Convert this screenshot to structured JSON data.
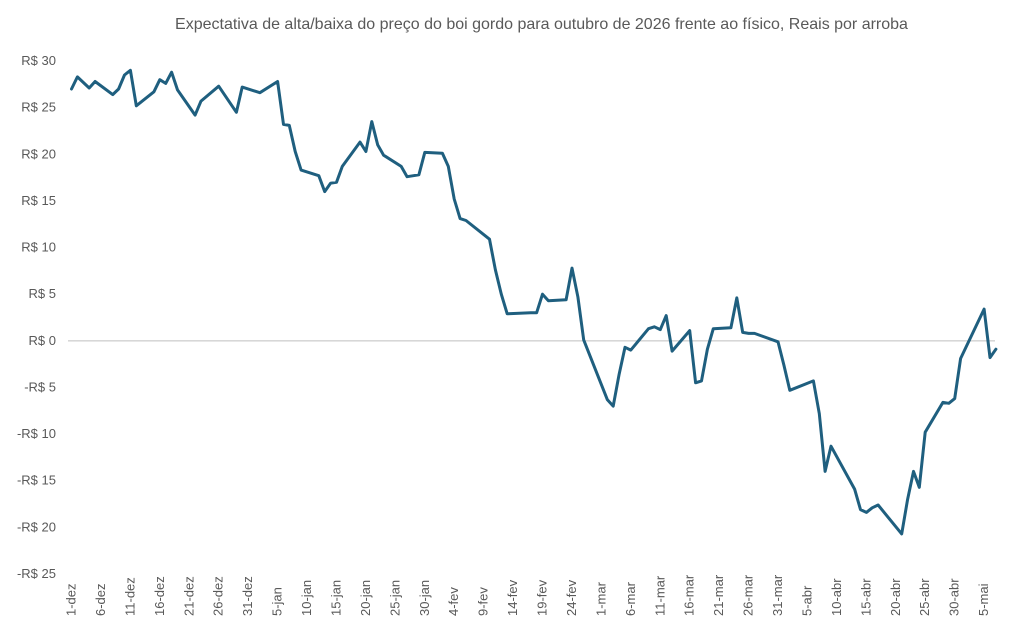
{
  "chart_data": {
    "type": "line",
    "title": "Expectativa de alta/baixa do preço do boi gordo para outubro de 2026 frente ao físico, Reais por arroba",
    "xlabel": "",
    "ylabel": "",
    "ylim": [
      -25,
      30
    ],
    "grid": false,
    "y_tick_labels": [
      "R$ 30",
      "R$ 25",
      "R$ 20",
      "R$ 15",
      "R$ 10",
      "R$ 5",
      "R$ 0",
      "-R$ 5",
      "-R$ 10",
      "-R$ 15",
      "-R$ 20",
      "-R$ 25"
    ],
    "y_tick_values": [
      30,
      25,
      20,
      15,
      10,
      5,
      0,
      -5,
      -10,
      -15,
      -20,
      -25
    ],
    "x_tick_labels": [
      "1-dez",
      "6-dez",
      "11-dez",
      "16-dez",
      "21-dez",
      "26-dez",
      "31-dez",
      "5-jan",
      "10-jan",
      "15-jan",
      "20-jan",
      "25-jan",
      "30-jan",
      "4-fev",
      "9-fev",
      "14-fev",
      "19-fev",
      "24-fev",
      "1-mar",
      "6-mar",
      "11-mar",
      "16-mar",
      "21-mar",
      "26-mar",
      "31-mar",
      "5-abr",
      "10-abr",
      "15-abr",
      "20-abr",
      "25-abr",
      "30-abr",
      "5-mai"
    ],
    "x_tick_days": [
      0,
      5,
      10,
      15,
      20,
      25,
      30,
      35,
      40,
      45,
      50,
      55,
      60,
      65,
      70,
      75,
      80,
      85,
      90,
      95,
      100,
      105,
      110,
      115,
      120,
      125,
      130,
      135,
      140,
      145,
      150,
      155
    ],
    "x_range_days": [
      0,
      156
    ],
    "series": [
      {
        "color": "#1f5f7f",
        "points": [
          [
            0,
            27.0
          ],
          [
            1,
            28.3
          ],
          [
            3,
            27.1
          ],
          [
            4,
            27.8
          ],
          [
            7,
            26.4
          ],
          [
            8,
            27.0
          ],
          [
            9,
            28.5
          ],
          [
            10,
            29.0
          ],
          [
            11,
            25.2
          ],
          [
            14,
            26.7
          ],
          [
            15,
            28.0
          ],
          [
            16,
            27.6
          ],
          [
            17,
            28.8
          ],
          [
            18,
            26.9
          ],
          [
            21,
            24.2
          ],
          [
            22,
            25.7
          ],
          [
            25,
            27.3
          ],
          [
            28,
            24.5
          ],
          [
            29,
            27.2
          ],
          [
            32,
            26.6
          ],
          [
            35,
            27.8
          ],
          [
            36,
            23.2
          ],
          [
            37,
            23.1
          ],
          [
            38,
            20.3
          ],
          [
            39,
            18.3
          ],
          [
            42,
            17.7
          ],
          [
            43,
            16.0
          ],
          [
            44,
            16.9
          ],
          [
            45,
            17.0
          ],
          [
            46,
            18.7
          ],
          [
            49,
            21.3
          ],
          [
            50,
            20.3
          ],
          [
            51,
            23.5
          ],
          [
            52,
            21.0
          ],
          [
            53,
            19.9
          ],
          [
            56,
            18.7
          ],
          [
            57,
            17.6
          ],
          [
            59,
            17.8
          ],
          [
            60,
            20.2
          ],
          [
            63,
            20.1
          ],
          [
            64,
            18.7
          ],
          [
            65,
            15.2
          ],
          [
            66,
            13.1
          ],
          [
            67,
            12.9
          ],
          [
            71,
            10.9
          ],
          [
            72,
            7.6
          ],
          [
            73,
            5.0
          ],
          [
            74,
            2.9
          ],
          [
            78,
            3.0
          ],
          [
            79,
            3.0
          ],
          [
            80,
            5.0
          ],
          [
            81,
            4.3
          ],
          [
            84,
            4.4
          ],
          [
            85,
            7.8
          ],
          [
            86,
            4.7
          ],
          [
            87,
            0.1
          ],
          [
            91,
            -6.3
          ],
          [
            92,
            -7.0
          ],
          [
            93,
            -3.6
          ],
          [
            94,
            -0.7
          ],
          [
            95,
            -1.0
          ],
          [
            98,
            1.3
          ],
          [
            99,
            1.5
          ],
          [
            100,
            1.2
          ],
          [
            101,
            2.7
          ],
          [
            102,
            -1.1
          ],
          [
            105,
            1.1
          ],
          [
            106,
            -4.5
          ],
          [
            107,
            -4.3
          ],
          [
            108,
            -0.9
          ],
          [
            109,
            1.3
          ],
          [
            112,
            1.4
          ],
          [
            113,
            4.6
          ],
          [
            114,
            0.9
          ],
          [
            115,
            0.8
          ],
          [
            116,
            0.8
          ],
          [
            120,
            -0.1
          ],
          [
            121,
            -2.6
          ],
          [
            122,
            -5.3
          ],
          [
            126,
            -4.3
          ],
          [
            127,
            -7.8
          ],
          [
            128,
            -14.0
          ],
          [
            129,
            -11.3
          ],
          [
            133,
            -15.9
          ],
          [
            134,
            -18.1
          ],
          [
            135,
            -18.4
          ],
          [
            136,
            -17.9
          ],
          [
            137,
            -17.6
          ],
          [
            141,
            -20.7
          ],
          [
            142,
            -17.0
          ],
          [
            143,
            -14.0
          ],
          [
            144,
            -15.7
          ],
          [
            145,
            -9.8
          ],
          [
            148,
            -6.6
          ],
          [
            149,
            -6.7
          ],
          [
            150,
            -6.2
          ],
          [
            151,
            -1.9
          ],
          [
            155,
            3.4
          ],
          [
            156,
            -1.8
          ],
          [
            157,
            -0.9
          ]
        ]
      }
    ]
  }
}
